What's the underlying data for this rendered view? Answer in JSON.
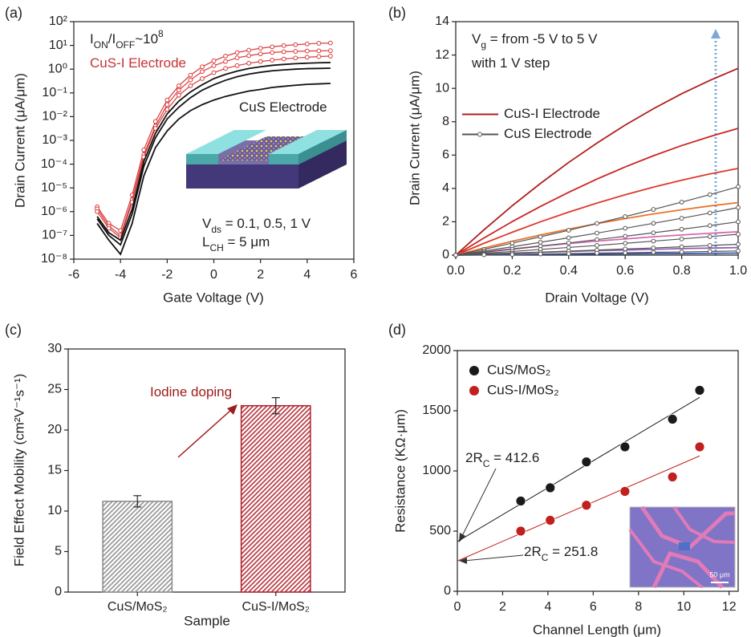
{
  "chart_data": [
    {
      "type": "line",
      "panel_label": "(a)",
      "yscale": "log",
      "xlabel": "Gate Voltage (V)",
      "ylabel": "Drain Current (μA/μm)",
      "xlim": [
        -6,
        6
      ],
      "xticks": [
        -6,
        -4,
        -2,
        0,
        2,
        4,
        6
      ],
      "ylim": [
        1e-08,
        100
      ],
      "yticks": [
        {
          "value": 1e-08,
          "label": "10⁻⁸"
        },
        {
          "value": 1e-07,
          "label": "10⁻⁷"
        },
        {
          "value": 1e-06,
          "label": "10⁻⁶"
        },
        {
          "value": 1e-05,
          "label": "10⁻⁵"
        },
        {
          "value": 0.0001,
          "label": "10⁻⁴"
        },
        {
          "value": 0.001,
          "label": "10⁻³"
        },
        {
          "value": 0.01,
          "label": "10⁻²"
        },
        {
          "value": 0.1,
          "label": "10⁻¹"
        },
        {
          "value": 1,
          "label": "10⁰"
        },
        {
          "value": 10,
          "label": "10¹"
        },
        {
          "value": 100,
          "label": "10²"
        }
      ],
      "x": [
        -5,
        -4.5,
        -4,
        -3.5,
        -3,
        -2.5,
        -2,
        -1.5,
        -1,
        -0.5,
        0,
        0.5,
        1,
        1.5,
        2,
        2.5,
        3,
        3.5,
        4,
        4.5,
        5
      ],
      "series": [
        {
          "color": "#d9383a",
          "marker": "circle",
          "values": [
            1.6e-06,
            3.2e-07,
            1.6e-07,
            5e-06,
            0.0004,
            0.0063,
            0.05,
            0.2,
            0.56,
            1.26,
            2.24,
            3.55,
            5.0,
            6.3,
            7.6,
            8.7,
            9.8,
            10.7,
            11.5,
            12.3,
            12.6
          ]
        },
        {
          "color": "#d9383a",
          "marker": "circle",
          "values": [
            1.3e-06,
            2.5e-07,
            1e-07,
            3.2e-06,
            0.00025,
            0.004,
            0.032,
            0.13,
            0.35,
            0.79,
            1.4,
            2.1,
            3.0,
            3.7,
            4.4,
            5.0,
            5.4,
            5.6,
            5.8,
            5.9,
            6.0
          ]
        },
        {
          "color": "#d9383a",
          "marker": "circle",
          "values": [
            1e-06,
            2e-07,
            8e-08,
            2.5e-06,
            0.0002,
            0.0032,
            0.02,
            0.08,
            0.2,
            0.4,
            0.71,
            1.07,
            1.41,
            1.78,
            2.09,
            2.4,
            2.69,
            2.95,
            3.16,
            3.39,
            3.55
          ]
        },
        {
          "color": "#111111",
          "values": [
            6.3e-07,
            1.3e-07,
            6.3e-08,
            1.3e-06,
            0.00013,
            0.002,
            0.013,
            0.045,
            0.11,
            0.22,
            0.4,
            0.6,
            0.83,
            1.07,
            1.26,
            1.45,
            1.58,
            1.7,
            1.78,
            1.86,
            1.9
          ]
        },
        {
          "color": "#111111",
          "values": [
            5e-07,
            1e-07,
            4e-08,
            8e-07,
            8e-05,
            0.0013,
            0.008,
            0.025,
            0.063,
            0.13,
            0.22,
            0.34,
            0.48,
            0.62,
            0.74,
            0.85,
            0.93,
            1.0,
            1.05,
            1.07,
            1.1
          ]
        },
        {
          "color": "#111111",
          "values": [
            3.2e-07,
            6.3e-08,
            1.6e-08,
            3.2e-07,
            3.2e-05,
            0.0005,
            0.0025,
            0.008,
            0.018,
            0.032,
            0.05,
            0.071,
            0.093,
            0.12,
            0.14,
            0.17,
            0.19,
            0.21,
            0.23,
            0.24,
            0.25
          ]
        }
      ],
      "annotations": [
        {
          "parts": [
            "I",
            "ON",
            "/I",
            "OFF",
            "~10",
            "8"
          ]
        },
        {
          "parts": [
            "CuS-I Electrode"
          ],
          "color": "#c83232"
        },
        {
          "parts": [
            "CuS Electrode"
          ]
        },
        {
          "parts": [
            "V",
            "ds",
            " = 0.1, 0.5, 1 V"
          ]
        },
        {
          "parts": [
            "L",
            "CH",
            " = 5 μm"
          ]
        }
      ]
    },
    {
      "type": "line",
      "panel_label": "(b)",
      "xlabel": "Drain Voltage (V)",
      "ylabel": "Drain Current (μA/μm)",
      "xlim": [
        0,
        1
      ],
      "xticks": [
        {
          "value": 0,
          "label": "0.0"
        },
        0.2,
        0.4,
        0.6,
        0.8,
        {
          "value": 1,
          "label": "1.0"
        }
      ],
      "ylim": [
        0,
        14
      ],
      "yticks": [
        0,
        2,
        4,
        6,
        8,
        10,
        12,
        14
      ],
      "legend": "center left",
      "x": [
        0,
        0.1,
        0.2,
        0.3,
        0.4,
        0.5,
        0.6,
        0.7,
        0.8,
        0.9,
        1
      ],
      "series": [
        {
          "name": "CuS-I Electrode",
          "color": "#b01e1e",
          "values": [
            0,
            1.52,
            2.96,
            4.3,
            5.56,
            6.72,
            7.8,
            8.78,
            9.68,
            10.48,
            11.2
          ]
        },
        {
          "color": "#cc2424",
          "values": [
            0,
            1.03,
            2.01,
            2.92,
            3.77,
            4.56,
            5.29,
            5.96,
            6.57,
            7.11,
            7.6
          ]
        },
        {
          "color": "#dc3a2c",
          "values": [
            0,
            0.71,
            1.37,
            2.0,
            2.58,
            3.12,
            3.62,
            4.08,
            4.49,
            4.87,
            5.2
          ]
        },
        {
          "color": "#e8742a",
          "values": [
            0,
            0.43,
            0.83,
            1.21,
            1.56,
            1.89,
            2.19,
            2.47,
            2.72,
            2.95,
            3.15
          ]
        },
        {
          "color": "#d868b0",
          "values": [
            0,
            0.19,
            0.37,
            0.54,
            0.69,
            0.84,
            0.97,
            1.1,
            1.21,
            1.31,
            1.4
          ]
        },
        {
          "color": "#9060b0",
          "values": [
            0,
            0.06,
            0.12,
            0.17,
            0.22,
            0.27,
            0.31,
            0.35,
            0.39,
            0.42,
            0.45
          ]
        },
        {
          "color": "#3858b0",
          "values": [
            0,
            0.02,
            0.03,
            0.05,
            0.06,
            0.07,
            0.08,
            0.09,
            0.1,
            0.11,
            0.12
          ]
        },
        {
          "name": "CuS Electrode",
          "color": "#555555",
          "marker": "circle",
          "values": [
            0,
            0.35,
            0.72,
            1.1,
            1.49,
            1.9,
            2.31,
            2.74,
            3.18,
            3.63,
            4.1
          ]
        },
        {
          "color": "#555555",
          "marker": "circle",
          "values": [
            0,
            0.25,
            0.5,
            0.77,
            1.04,
            1.32,
            1.61,
            1.91,
            2.21,
            2.53,
            2.85
          ]
        },
        {
          "color": "#555555",
          "marker": "circle",
          "values": [
            0,
            0.17,
            0.35,
            0.54,
            0.73,
            0.93,
            1.13,
            1.34,
            1.55,
            1.77,
            2.0
          ]
        },
        {
          "color": "#555555",
          "marker": "circle",
          "values": [
            0,
            0.11,
            0.22,
            0.34,
            0.46,
            0.58,
            0.71,
            0.84,
            0.97,
            1.11,
            1.25
          ]
        },
        {
          "color": "#555555",
          "marker": "circle",
          "values": [
            0,
            0.06,
            0.11,
            0.17,
            0.24,
            0.3,
            0.37,
            0.43,
            0.5,
            0.58,
            0.65
          ]
        },
        {
          "color": "#555555",
          "marker": "circle",
          "values": [
            0,
            0.02,
            0.04,
            0.07,
            0.09,
            0.12,
            0.14,
            0.17,
            0.19,
            0.22,
            0.25
          ]
        }
      ],
      "annotations": [
        {
          "parts": [
            "V",
            "g",
            " = from -5 V to 5 V"
          ]
        },
        {
          "parts": [
            "with 1 V step"
          ]
        }
      ]
    },
    {
      "type": "bar",
      "panel_label": "(c)",
      "xlabel": "Sample",
      "ylabel": "Field Effect Mobility (cm²V⁻¹s⁻¹)",
      "categories": [
        "CuS/MoS₂",
        "CuS-I/MoS₂"
      ],
      "values": [
        11.2,
        23.0
      ],
      "errors": [
        0.7,
        1.0
      ],
      "colors": [
        "#8a8a8a",
        "#b0202a"
      ],
      "ylim": [
        0,
        30
      ],
      "yticks": [
        0,
        5,
        10,
        15,
        20,
        25,
        30
      ],
      "annotations": [
        {
          "parts": [
            "Iodine doping"
          ],
          "color": "#a01c1c"
        }
      ]
    },
    {
      "type": "scatter",
      "panel_label": "(d)",
      "xlabel": "Channel Length (μm)",
      "ylabel": "Resistance (KΩ·μm)",
      "xlim": [
        0,
        12.4
      ],
      "xticks": [
        0,
        2,
        4,
        6,
        8,
        10,
        12
      ],
      "ylim": [
        0,
        2000
      ],
      "yticks": [
        0,
        500,
        1000,
        1500,
        2000
      ],
      "legend": "upper left",
      "series": [
        {
          "name": "CuS/MoS₂",
          "color": "#1a1a1a",
          "x": [
            2.8,
            4.1,
            5.7,
            7.4,
            9.5,
            10.7
          ],
          "values": [
            750,
            860,
            1075,
            1200,
            1430,
            1670
          ],
          "fit": {
            "intercept": 412.6,
            "slope": 112,
            "x_end": 10.7
          }
        },
        {
          "name": "CuS-I/MoS₂",
          "color": "#c0201e",
          "x": [
            2.8,
            4.1,
            5.7,
            7.4,
            9.5,
            10.7
          ],
          "values": [
            500,
            590,
            715,
            830,
            950,
            1200
          ],
          "fit": {
            "intercept": 251.8,
            "slope": 81.6,
            "x_end": 10.7
          }
        }
      ],
      "annotations": [
        {
          "parts": [
            "2R",
            "C",
            " = 412.6"
          ]
        },
        {
          "parts": [
            "2R",
            "C",
            " = 251.8"
          ]
        }
      ],
      "inset_label": "50 μm"
    }
  ]
}
